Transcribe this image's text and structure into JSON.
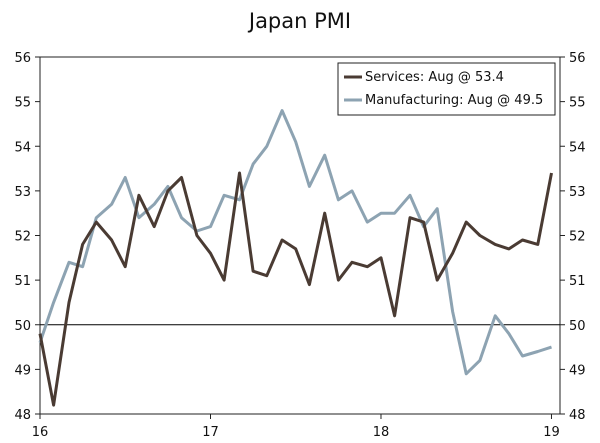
{
  "chart_data": {
    "type": "line",
    "title": "Japan PMI",
    "xlabel": "",
    "ylabel": "",
    "ylim": [
      48,
      56
    ],
    "yticks": [
      48,
      49,
      50,
      51,
      52,
      53,
      54,
      55,
      56
    ],
    "x_range": [
      16,
      19.05
    ],
    "xticks": [
      16,
      17,
      18,
      19
    ],
    "reference_line": 50,
    "grid": false,
    "legend_position": "top-right",
    "series": [
      {
        "name": "Services: Aug @ 53.4",
        "color": "#4a3b33",
        "x": [
          16.0,
          16.08,
          16.17,
          16.25,
          16.33,
          16.42,
          16.5,
          16.58,
          16.67,
          16.75,
          16.83,
          16.92,
          17.0,
          17.08,
          17.17,
          17.25,
          17.33,
          17.42,
          17.5,
          17.58,
          17.67,
          17.75,
          17.83,
          17.92,
          18.0,
          18.08,
          18.17,
          18.25,
          18.33,
          18.42,
          18.5,
          18.58,
          18.67,
          18.75,
          18.83,
          18.92,
          19.0
        ],
        "values": [
          49.8,
          48.2,
          50.5,
          51.8,
          52.3,
          51.9,
          51.3,
          52.9,
          52.2,
          53.0,
          53.3,
          52.0,
          51.6,
          51.0,
          53.4,
          51.2,
          51.1,
          51.9,
          51.7,
          50.9,
          52.5,
          51.0,
          51.4,
          51.3,
          51.5,
          50.2,
          52.4,
          52.3,
          51.0,
          51.6,
          52.3,
          52.0,
          51.8,
          51.7,
          51.9,
          51.8,
          53.4
        ]
      },
      {
        "name": "Manufacturing: Aug @ 49.5",
        "color": "#8da3b2",
        "x": [
          16.0,
          16.08,
          16.17,
          16.25,
          16.33,
          16.42,
          16.5,
          16.58,
          16.67,
          16.75,
          16.83,
          16.92,
          17.0,
          17.08,
          17.17,
          17.25,
          17.33,
          17.42,
          17.5,
          17.58,
          17.67,
          17.75,
          17.83,
          17.92,
          18.0,
          18.08,
          18.17,
          18.25,
          18.33,
          18.42,
          18.5,
          18.58,
          18.67,
          18.75,
          18.83,
          18.92,
          19.0
        ],
        "values": [
          49.6,
          50.5,
          51.4,
          51.3,
          52.4,
          52.7,
          53.3,
          52.4,
          52.7,
          53.1,
          52.4,
          52.1,
          52.2,
          52.9,
          52.8,
          53.6,
          54.0,
          54.8,
          54.1,
          53.1,
          53.8,
          52.8,
          53.0,
          52.3,
          52.5,
          52.5,
          52.9,
          52.2,
          52.6,
          50.3,
          48.9,
          49.2,
          50.2,
          49.8,
          49.3,
          49.4,
          49.5
        ]
      }
    ]
  }
}
